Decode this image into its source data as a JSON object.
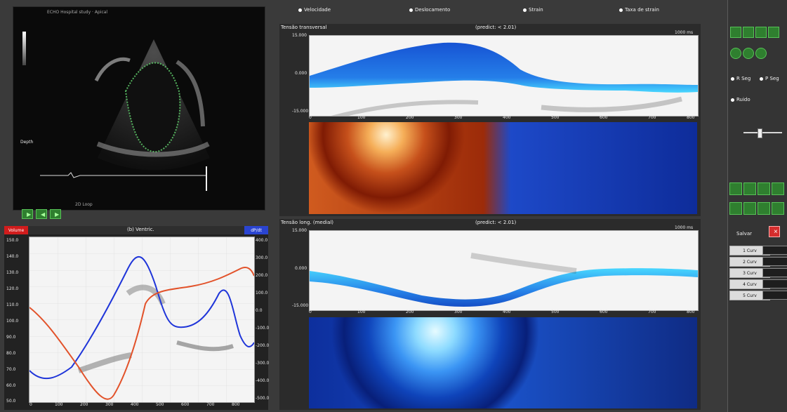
{
  "echo": {
    "header": "ECHO Hospital study · Apical",
    "depth_label": "Depth",
    "bottom_label": "2D Loop"
  },
  "playback": {
    "buttons": [
      "play",
      "step-back",
      "step-forward"
    ]
  },
  "radios": {
    "items": [
      "Velocidade",
      "Deslocamento",
      "Strain",
      "Taxa de strain"
    ]
  },
  "curves": {
    "title": "(b) Ventric.",
    "left_badge": "Volume",
    "right_badge": "dP/dt",
    "left_ticks": [
      "150.0",
      "140.0",
      "130.0",
      "120.0",
      "110.0",
      "100.0",
      "90.0",
      "80.0",
      "70.0",
      "60.0",
      "50.0"
    ],
    "right_ticks": [
      "400.0",
      "300.0",
      "200.0",
      "100.0",
      "0.0",
      "-100.0",
      "-200.0",
      "-300.0",
      "-400.0",
      "-500.0"
    ],
    "x_ticks": [
      "0",
      "100",
      "200",
      "300",
      "400",
      "500",
      "600",
      "700",
      "800"
    ],
    "colors": {
      "blue": "#1f35d9",
      "orange": "#e2522a"
    }
  },
  "strain_top": {
    "title": "Tensão transversal",
    "subtitle": "(predict: < 2.01)",
    "label_top": "15.000",
    "label_mid": "0.000",
    "label_bot": "-15.000",
    "x_ticks": [
      "0",
      "100",
      "200",
      "300",
      "400",
      "500",
      "600",
      "700",
      "800"
    ],
    "right_note": "1000 ms"
  },
  "strain_bottom": {
    "title": "Tensão long. (medial)",
    "subtitle": "(predict: < 2.01)",
    "label_top": "15.000",
    "label_mid": "0.000",
    "label_bot": "-15.000",
    "x_ticks": [
      "0",
      "100",
      "200",
      "300",
      "400",
      "500",
      "600",
      "700",
      "800"
    ],
    "right_note": "1000 ms"
  },
  "right_panel": {
    "radio_a": "R Seg",
    "radio_b": "P Seg",
    "radio_c": "Ruido",
    "action_label": "Salvar",
    "fields": [
      "1 Curv",
      "2 Curv",
      "3 Curv",
      "4 Curv",
      "5 Curv"
    ]
  }
}
